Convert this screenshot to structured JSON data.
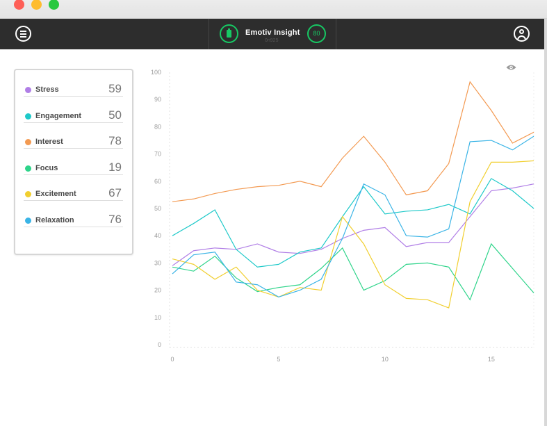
{
  "window": {
    "traffic_lights": [
      "close",
      "minimize",
      "zoom"
    ]
  },
  "appbar": {
    "menu_icon": "hamburger-menu-icon",
    "device": {
      "name": "Emotiv Insight",
      "sub": "0n925",
      "battery_icon": "battery-icon",
      "signal": "80"
    },
    "user_icon": "user-account-icon"
  },
  "metrics": [
    {
      "name": "Stress",
      "value": "59",
      "color": "#b07ee6"
    },
    {
      "name": "Engagement",
      "value": "50",
      "color": "#1ec9c9"
    },
    {
      "name": "Interest",
      "value": "78",
      "color": "#f39a52"
    },
    {
      "name": "Focus",
      "value": "19",
      "color": "#2ed48a"
    },
    {
      "name": "Excitement",
      "value": "67",
      "color": "#f1cf2f"
    },
    {
      "name": "Relaxation",
      "value": "76",
      "color": "#3ab4e6"
    }
  ],
  "chart_icon": "eye-icon",
  "chart_data": {
    "type": "line",
    "x": [
      0,
      1,
      2,
      3,
      4,
      5,
      6,
      7,
      8,
      9,
      10,
      11,
      12,
      13,
      14,
      15,
      16,
      17
    ],
    "xticks": [
      0,
      5,
      10,
      15
    ],
    "yticks": [
      0,
      10,
      20,
      30,
      40,
      50,
      60,
      70,
      80,
      90,
      100
    ],
    "xlim": [
      0,
      17
    ],
    "ylim": [
      0,
      100
    ],
    "series": [
      {
        "name": "Stress",
        "color": "#b07ee6",
        "values": [
          29,
          34.5,
          35.5,
          35,
          37,
          34,
          33.5,
          35,
          39,
          42,
          43,
          36,
          37.5,
          37.5,
          47,
          56.5,
          57.5,
          59
        ]
      },
      {
        "name": "Engagement",
        "color": "#1ec9c9",
        "values": [
          40,
          44.5,
          49.5,
          35,
          28.5,
          29.5,
          34,
          35.5,
          47,
          58,
          48,
          49,
          49.5,
          51.5,
          48,
          61,
          56.5,
          50
        ]
      },
      {
        "name": "Interest",
        "color": "#f39a52",
        "values": [
          52.5,
          53.5,
          55.5,
          57,
          58,
          58.5,
          60,
          58,
          68.5,
          76.5,
          67,
          55,
          56.5,
          66.5,
          96.5,
          86,
          74,
          78
        ]
      },
      {
        "name": "Focus",
        "color": "#2ed48a",
        "values": [
          28.5,
          27,
          32.5,
          24.5,
          19.5,
          21,
          22,
          28,
          35.5,
          20,
          23.5,
          29.5,
          30,
          28.5,
          16.5,
          37,
          28,
          19
        ]
      },
      {
        "name": "Excitement",
        "color": "#f1cf2f",
        "values": [
          31.5,
          29.5,
          24,
          28.5,
          20,
          17.5,
          21,
          20,
          47,
          37,
          22,
          17,
          16.5,
          13.5,
          52.5,
          67,
          67,
          67.5
        ]
      },
      {
        "name": "Relaxation",
        "color": "#3ab4e6",
        "values": [
          26,
          33,
          34,
          23,
          22,
          17.5,
          20,
          24,
          39,
          59,
          55,
          40,
          39.5,
          42.5,
          74.5,
          75,
          71.5,
          76.5
        ]
      }
    ]
  }
}
